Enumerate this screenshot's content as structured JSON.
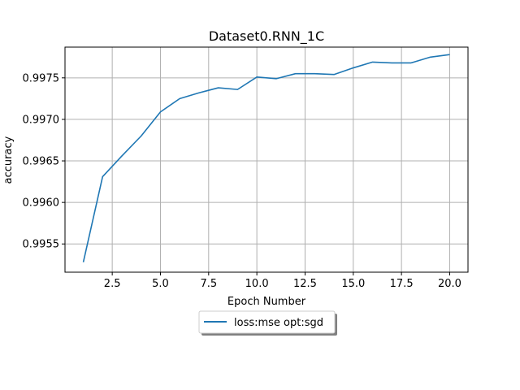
{
  "chart_data": {
    "type": "line",
    "title": "Dataset0.RNN_1C",
    "xlabel": "Epoch Number",
    "ylabel": "accuracy",
    "xlim": [
      0.05,
      20.95
    ],
    "ylim": [
      0.99516,
      0.99787
    ],
    "xticks": [
      2.5,
      5.0,
      7.5,
      10.0,
      12.5,
      15.0,
      17.5,
      20.0
    ],
    "xtick_labels": [
      "2.5",
      "5.0",
      "7.5",
      "10.0",
      "12.5",
      "15.0",
      "17.5",
      "20.0"
    ],
    "yticks": [
      0.9955,
      0.996,
      0.9965,
      0.997,
      0.9975
    ],
    "ytick_labels": [
      "0.9955",
      "0.9960",
      "0.9965",
      "0.9970",
      "0.9975"
    ],
    "grid": true,
    "legend_position": "below-center",
    "series": [
      {
        "name": "loss:mse opt:sgd",
        "color": "#1f77b4",
        "x": [
          1,
          2,
          3,
          4,
          5,
          6,
          7,
          8,
          9,
          10,
          11,
          12,
          13,
          14,
          15,
          16,
          17,
          18,
          19,
          20
        ],
        "y": [
          0.99528,
          0.99631,
          0.99656,
          0.9968,
          0.99709,
          0.99725,
          0.99732,
          0.99738,
          0.99736,
          0.99751,
          0.99749,
          0.99755,
          0.99755,
          0.99754,
          0.99762,
          0.99769,
          0.99768,
          0.99768,
          0.99775,
          0.99778
        ]
      }
    ]
  }
}
